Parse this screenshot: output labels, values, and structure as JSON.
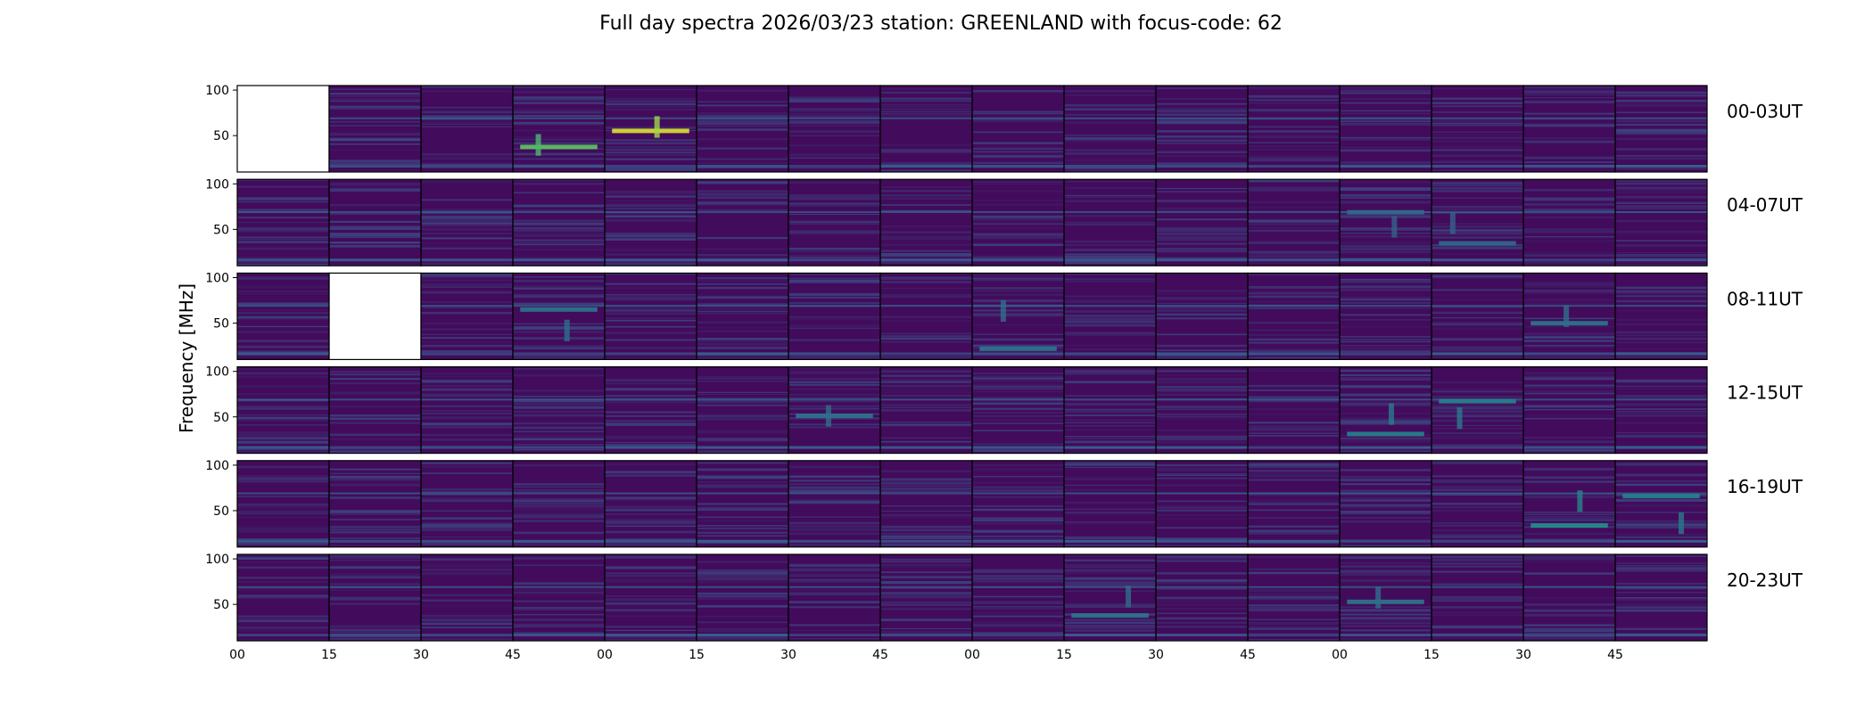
{
  "chart_data": {
    "type": "heatmap",
    "title": "Full day spectra 2026/03/23 station: GREENLAND with focus-code: 62",
    "ylabel": "Frequency [MHz]",
    "ylim": [
      10,
      105
    ],
    "y_ticks": [
      50,
      100
    ],
    "x_tick_labels": [
      "00",
      "15",
      "30",
      "45",
      "00",
      "15",
      "30",
      "45",
      "00",
      "15",
      "30",
      "45",
      "00",
      "15",
      "30",
      "45"
    ],
    "panels_per_row": 16,
    "colormap": [
      "#440154",
      "#3b528b",
      "#21918c",
      "#5ec962",
      "#fde725"
    ],
    "rows": [
      {
        "label": "00-03UT",
        "missing": [
          0
        ],
        "hot": [
          {
            "panel": 3,
            "level": 0.75
          },
          {
            "panel": 4,
            "level": 0.95
          }
        ]
      },
      {
        "label": "04-07UT",
        "missing": [],
        "hot": [
          {
            "panel": 12,
            "level": 0.35
          },
          {
            "panel": 13,
            "level": 0.35
          }
        ]
      },
      {
        "label": "08-11UT",
        "missing": [
          1
        ],
        "hot": [
          {
            "panel": 3,
            "level": 0.4
          },
          {
            "panel": 8,
            "level": 0.4
          },
          {
            "panel": 14,
            "level": 0.4
          }
        ]
      },
      {
        "label": "12-15UT",
        "missing": [],
        "hot": [
          {
            "panel": 6,
            "level": 0.4
          },
          {
            "panel": 12,
            "level": 0.45
          },
          {
            "panel": 13,
            "level": 0.45
          }
        ]
      },
      {
        "label": "16-19UT",
        "missing": [],
        "hot": [
          {
            "panel": 14,
            "level": 0.5
          },
          {
            "panel": 15,
            "level": 0.45
          }
        ]
      },
      {
        "label": "20-23UT",
        "missing": [],
        "hot": [
          {
            "panel": 9,
            "level": 0.4
          },
          {
            "panel": 12,
            "level": 0.4
          }
        ]
      }
    ]
  }
}
